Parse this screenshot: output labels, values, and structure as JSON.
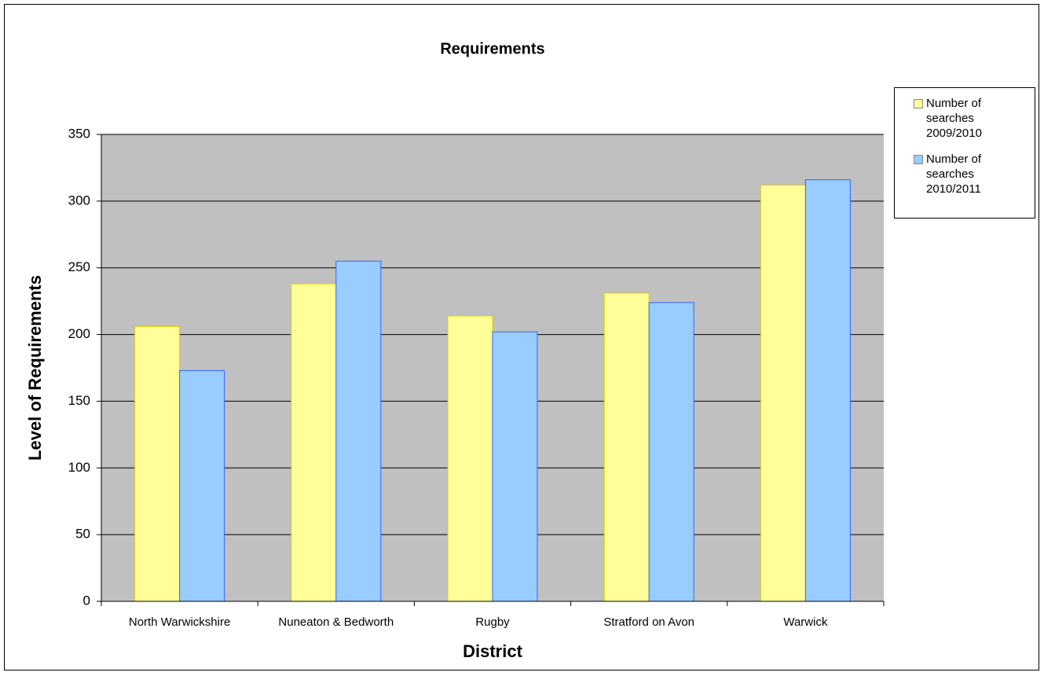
{
  "chart_data": {
    "type": "bar",
    "title": "Requirements",
    "x_label": "District",
    "y_label": "Level of Requirements",
    "categories": [
      "North Warwickshire",
      "Nuneaton & Bedworth",
      "Rugby",
      "Stratford on Avon",
      "Warwick"
    ],
    "series": [
      {
        "name": "Number of searches 2009/2010",
        "color": "#ffff99",
        "values": [
          206,
          238,
          214,
          231,
          312
        ]
      },
      {
        "name": "Number of searches 2010/2011",
        "color": "#99ccff",
        "values": [
          173,
          255,
          202,
          224,
          316
        ]
      }
    ],
    "ylim": [
      0,
      350
    ],
    "yticks": [
      0,
      50,
      100,
      150,
      200,
      250,
      300,
      350
    ],
    "grid": true,
    "legend": "right"
  }
}
